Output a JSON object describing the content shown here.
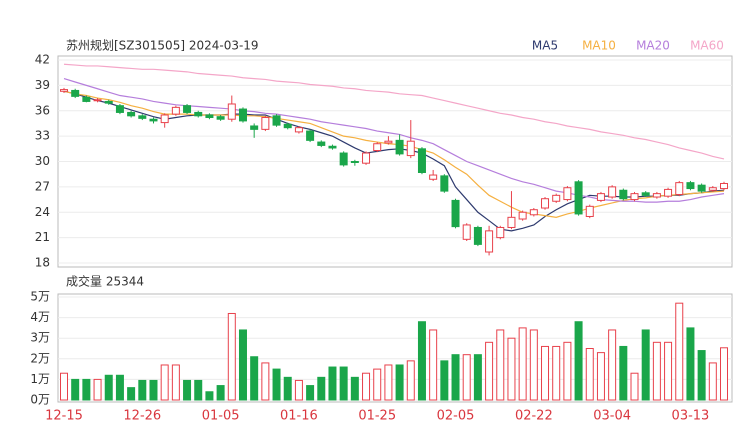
{
  "chart_data": [
    {
      "type": "candlestick",
      "title": "苏州规划[SZ301505] 2024-03-19",
      "up_color": "#e8414b",
      "down_color": "#1aa64a",
      "ylim": [
        18,
        42
      ],
      "yticks": [
        18,
        21,
        24,
        27,
        30,
        33,
        36,
        39,
        42
      ],
      "grid": true,
      "legend": "top-right",
      "open": [
        38.3,
        38.4,
        37.6,
        37.2,
        37.1,
        36.6,
        35.8,
        35.4,
        35.0,
        34.6,
        35.6,
        36.6,
        35.8,
        35.5,
        35.3,
        35.0,
        36.2,
        34.2,
        33.8,
        35.4,
        34.4,
        33.5,
        33.6,
        32.3,
        31.8,
        31.0,
        30.0,
        29.8,
        31.3,
        32.2,
        32.5,
        30.7,
        31.5,
        27.9,
        28.3,
        25.4,
        20.8,
        22.2,
        19.3,
        21.0,
        22.2,
        23.2,
        23.7,
        24.5,
        25.3,
        25.5,
        27.6,
        23.5,
        25.4,
        25.8,
        26.6,
        25.5,
        26.3,
        25.8,
        25.9,
        26.1,
        27.5,
        27.2,
        26.6,
        26.8
      ],
      "high": [
        38.7,
        38.6,
        37.8,
        37.5,
        37.3,
        36.8,
        36.0,
        35.6,
        35.2,
        35.7,
        36.6,
        36.8,
        36.0,
        35.7,
        35.5,
        37.8,
        36.4,
        34.5,
        35.4,
        35.6,
        34.6,
        34.2,
        33.8,
        32.5,
        32.0,
        31.2,
        30.2,
        31.2,
        32.3,
        33.0,
        33.2,
        34.9,
        31.7,
        29.0,
        28.5,
        25.6,
        22.7,
        22.4,
        22.4,
        22.4,
        26.5,
        24.2,
        24.5,
        25.8,
        26.2,
        27.1,
        27.8,
        24.9,
        26.4,
        27.2,
        26.8,
        26.4,
        26.5,
        26.4,
        26.9,
        27.7,
        27.7,
        27.4,
        27.1,
        27.6
      ],
      "low": [
        38.1,
        37.5,
        37.0,
        37.0,
        36.7,
        35.6,
        35.2,
        34.9,
        34.5,
        34.0,
        35.4,
        35.6,
        35.2,
        35.0,
        34.8,
        34.7,
        34.6,
        32.8,
        33.6,
        34.1,
        33.8,
        33.3,
        32.3,
        31.7,
        31.4,
        29.4,
        29.5,
        29.6,
        31.1,
        32.0,
        30.7,
        30.4,
        28.5,
        27.7,
        26.3,
        22.1,
        20.6,
        20.0,
        18.9,
        20.8,
        22.0,
        23.0,
        23.5,
        24.3,
        25.1,
        25.3,
        23.6,
        23.3,
        25.2,
        25.6,
        25.4,
        25.3,
        25.8,
        25.6,
        25.7,
        25.9,
        26.6,
        26.3,
        26.4,
        26.6
      ],
      "close": [
        38.5,
        37.7,
        37.1,
        37.3,
        36.9,
        35.8,
        35.4,
        35.1,
        34.8,
        35.5,
        36.4,
        35.8,
        35.4,
        35.2,
        35.0,
        36.8,
        34.8,
        33.8,
        35.2,
        34.3,
        34.0,
        34.0,
        32.5,
        31.9,
        31.6,
        29.6,
        29.9,
        31.0,
        32.1,
        32.4,
        30.9,
        32.4,
        28.7,
        28.4,
        26.5,
        22.3,
        22.5,
        20.2,
        21.8,
        22.2,
        23.4,
        24.0,
        24.3,
        25.6,
        26.0,
        26.9,
        23.8,
        24.7,
        26.2,
        27.0,
        25.6,
        26.2,
        26.0,
        26.2,
        26.7,
        27.5,
        26.8,
        26.5,
        26.9,
        27.4
      ],
      "series": [
        {
          "name": "MA5",
          "color": "#2e3a6e",
          "values": [
            38.3,
            38,
            37.6,
            37.2,
            36.9,
            36.5,
            36.1,
            35.7,
            35.3,
            35,
            35.2,
            35.4,
            35.5,
            35.5,
            35.5,
            35.6,
            35.6,
            35.5,
            35.5,
            35,
            34.5,
            34.1,
            33.8,
            33.4,
            33,
            32.3,
            31.6,
            31,
            31.2,
            31.4,
            31.5,
            31.3,
            31,
            30.3,
            29.5,
            27,
            25.5,
            24,
            23,
            22,
            21.8,
            22.1,
            22.5,
            23.5,
            24.3,
            25,
            25.5,
            26,
            25.9,
            25.9,
            25.8,
            25.8,
            25.9,
            25.9,
            26,
            26,
            26.2,
            26.3,
            26.5,
            26.6
          ]
        },
        {
          "name": "MA10",
          "color": "#f5b041",
          "values": [
            38.3,
            38,
            37.8,
            37.5,
            37.3,
            37,
            36.6,
            36.3,
            35.9,
            35.6,
            35.6,
            35.6,
            35.5,
            35.5,
            35.5,
            35.5,
            35.4,
            35.4,
            35.3,
            35.1,
            34.9,
            34.7,
            34.5,
            34,
            33.5,
            33,
            32.8,
            32.5,
            32.3,
            32.1,
            32,
            31.8,
            31.4,
            31,
            30.2,
            29.3,
            28.5,
            27.2,
            26,
            25.3,
            24.6,
            24,
            23.8,
            23.6,
            23.4,
            23.8,
            24.1,
            24.5,
            24.8,
            25.1,
            25.4,
            25.6,
            25.7,
            25.9,
            26,
            26.1,
            26.2,
            26.3,
            26.4,
            26.5
          ]
        },
        {
          "name": "MA20",
          "color": "#b57edc",
          "values": [
            39.8,
            39.4,
            39,
            38.6,
            38.2,
            37.8,
            37.6,
            37.4,
            37.1,
            36.9,
            36.7,
            36.6,
            36.5,
            36.4,
            36.3,
            36.2,
            36,
            35.9,
            35.7,
            35.6,
            35.4,
            35.2,
            35,
            34.7,
            34.5,
            34.3,
            34.1,
            33.9,
            33.6,
            33.4,
            33.2,
            32.8,
            32.5,
            32.1,
            31.4,
            30.7,
            30,
            29.5,
            29,
            28.5,
            28,
            27.6,
            27.3,
            26.9,
            26.5,
            26.3,
            26,
            25.8,
            25.5,
            25.4,
            25.3,
            25.3,
            25.2,
            25.2,
            25.3,
            25.3,
            25.5,
            25.8,
            26,
            26.2
          ]
        },
        {
          "name": "MA60",
          "color": "#f4a6c8",
          "values": [
            41.5,
            41.4,
            41.3,
            41.3,
            41.2,
            41.1,
            41,
            40.9,
            40.9,
            40.8,
            40.7,
            40.6,
            40.4,
            40.3,
            40.2,
            40.1,
            39.9,
            39.8,
            39.7,
            39.5,
            39.4,
            39.3,
            39.1,
            39,
            38.9,
            38.7,
            38.6,
            38.4,
            38.3,
            38.2,
            38,
            37.9,
            37.8,
            37.5,
            37.2,
            36.9,
            36.6,
            36.3,
            36,
            35.7,
            35.5,
            35.2,
            35,
            34.7,
            34.5,
            34.2,
            34,
            33.8,
            33.5,
            33.3,
            33.1,
            32.8,
            32.6,
            32.3,
            32,
            31.6,
            31.3,
            31,
            30.6,
            30.3
          ]
        }
      ]
    },
    {
      "type": "bar",
      "title": "成交量 25344",
      "categories": [
        "12-15",
        null,
        null,
        null,
        null,
        null,
        null,
        "12-26",
        null,
        null,
        null,
        null,
        null,
        null,
        "01-05",
        null,
        null,
        null,
        null,
        null,
        null,
        "01-16",
        null,
        null,
        null,
        null,
        null,
        null,
        "01-25",
        null,
        null,
        null,
        null,
        null,
        null,
        "02-05",
        null,
        null,
        null,
        null,
        null,
        null,
        "02-22",
        null,
        null,
        null,
        null,
        null,
        null,
        "03-04",
        null,
        null,
        null,
        null,
        null,
        null,
        "03-13",
        null,
        null,
        null
      ],
      "values": [
        13000,
        10000,
        10000,
        10000,
        12000,
        12000,
        6000,
        9500,
        9500,
        17000,
        17000,
        9500,
        9500,
        4000,
        7000,
        42000,
        34000,
        21000,
        18000,
        15000,
        11000,
        9500,
        7000,
        11000,
        16000,
        16000,
        11000,
        13000,
        15000,
        17000,
        17000,
        19000,
        38000,
        34000,
        19000,
        22000,
        22000,
        22000,
        28000,
        34000,
        30000,
        35000,
        34000,
        26000,
        26000,
        28000,
        38000,
        25000,
        23000,
        34000,
        26000,
        13000,
        34000,
        28000,
        28000,
        47000,
        35000,
        24000,
        18000,
        25344
      ],
      "ylim": [
        0,
        50000
      ],
      "yticks": [
        {
          "value": 0,
          "label": "0万"
        },
        {
          "value": 10000,
          "label": "1万"
        },
        {
          "value": 20000,
          "label": "2万"
        },
        {
          "value": 30000,
          "label": "3万"
        },
        {
          "value": 40000,
          "label": "4万"
        },
        {
          "value": 50000,
          "label": "5万"
        }
      ],
      "grid": true
    }
  ]
}
